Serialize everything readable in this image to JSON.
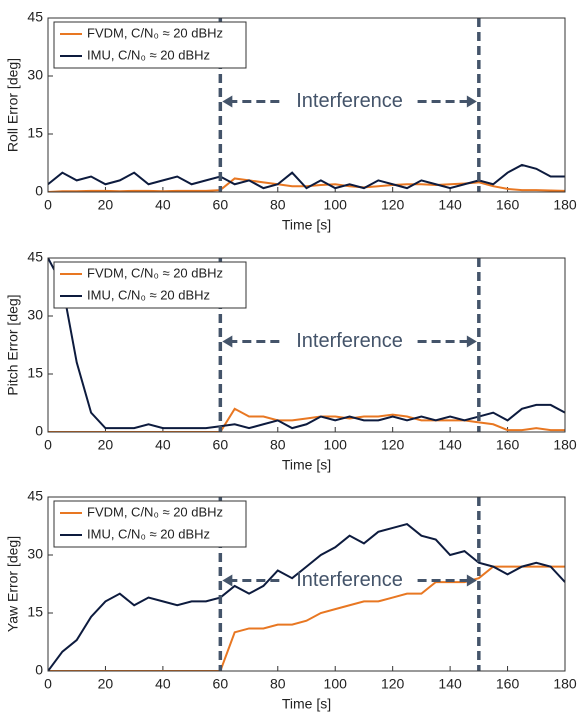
{
  "chart_data": [
    {
      "type": "line",
      "ylabel": "Roll Error [deg]",
      "xlabel": "Time [s]",
      "x": [
        0,
        5,
        10,
        15,
        20,
        25,
        30,
        35,
        40,
        45,
        50,
        55,
        60,
        65,
        70,
        75,
        80,
        85,
        90,
        95,
        100,
        105,
        110,
        115,
        120,
        125,
        130,
        135,
        140,
        145,
        150,
        155,
        160,
        165,
        170,
        175,
        180
      ],
      "series": [
        {
          "name": "FVDM, C/N₀ ≈ 20 dBHz",
          "color": "#e87722",
          "values": [
            0,
            0.2,
            0.2,
            0.3,
            0.3,
            0.2,
            0.3,
            0.3,
            0.2,
            0.3,
            0.3,
            0.3,
            0.5,
            3.5,
            3,
            2.5,
            2,
            1.5,
            1.5,
            1.8,
            2,
            1.5,
            1.2,
            1.5,
            1.8,
            2,
            2,
            1.8,
            2,
            2.2,
            2.5,
            1.5,
            0.8,
            0.5,
            0.5,
            0.4,
            0.3
          ]
        },
        {
          "name": "IMU, C/N₀ ≈ 20 dBHz",
          "color": "#0d1b3e",
          "values": [
            2,
            5,
            3,
            4,
            2,
            3,
            5,
            2,
            3,
            4,
            2,
            3,
            4,
            2,
            3,
            1,
            2,
            5,
            1,
            3,
            1,
            2,
            1,
            3,
            2,
            1,
            3,
            2,
            1,
            2,
            3,
            2,
            5,
            7,
            6,
            4,
            4
          ]
        }
      ],
      "xlim": [
        0,
        180
      ],
      "xticks": [
        0,
        20,
        40,
        60,
        80,
        100,
        120,
        140,
        160,
        180
      ],
      "ylim": [
        0,
        45
      ],
      "yticks": [
        0,
        15,
        30,
        45
      ],
      "legend": "upper left",
      "vlines": [
        60,
        150
      ],
      "annotation": "Interference"
    },
    {
      "type": "line",
      "ylabel": "Pitch Error [deg]",
      "xlabel": "Time [s]",
      "x": [
        0,
        5,
        10,
        15,
        20,
        25,
        30,
        35,
        40,
        45,
        50,
        55,
        60,
        65,
        70,
        75,
        80,
        85,
        90,
        95,
        100,
        105,
        110,
        115,
        120,
        125,
        130,
        135,
        140,
        145,
        150,
        155,
        160,
        165,
        170,
        175,
        180
      ],
      "series": [
        {
          "name": "FVDM, C/N₀ ≈ 20 dBHz",
          "color": "#e87722",
          "values": [
            0,
            0,
            0,
            0,
            0,
            0,
            0,
            0,
            0,
            0,
            0,
            0,
            0,
            6,
            4,
            4,
            3,
            3,
            3.5,
            4,
            4,
            3.5,
            4,
            4,
            4.5,
            4,
            3,
            3,
            3,
            3,
            2.5,
            2,
            0.5,
            0.5,
            1,
            0.5,
            0.5
          ]
        },
        {
          "name": "IMU, C/N₀ ≈ 20 dBHz",
          "color": "#0d1b3e",
          "values": [
            45,
            38,
            18,
            5,
            1,
            1,
            1,
            2,
            1,
            1,
            1,
            1,
            1.5,
            2,
            1,
            2,
            3,
            1,
            2,
            4,
            3,
            4,
            3,
            3,
            4,
            3,
            4,
            3,
            4,
            3,
            4,
            5,
            3,
            6,
            7,
            7,
            5
          ]
        }
      ],
      "xlim": [
        0,
        180
      ],
      "xticks": [
        0,
        20,
        40,
        60,
        80,
        100,
        120,
        140,
        160,
        180
      ],
      "ylim": [
        0,
        45
      ],
      "yticks": [
        0,
        15,
        30,
        45
      ],
      "legend": "upper left",
      "vlines": [
        60,
        150
      ],
      "annotation": "Interference"
    },
    {
      "type": "line",
      "ylabel": "Yaw Error [deg]",
      "xlabel": "Time [s]",
      "x": [
        0,
        5,
        10,
        15,
        20,
        25,
        30,
        35,
        40,
        45,
        50,
        55,
        60,
        65,
        70,
        75,
        80,
        85,
        90,
        95,
        100,
        105,
        110,
        115,
        120,
        125,
        130,
        135,
        140,
        145,
        150,
        155,
        160,
        165,
        170,
        175,
        180
      ],
      "series": [
        {
          "name": "FVDM, C/N₀ ≈ 20 dBHz",
          "color": "#e87722",
          "values": [
            0,
            0,
            0,
            0,
            0,
            0,
            0,
            0,
            0,
            0,
            0,
            0,
            0,
            10,
            11,
            11,
            12,
            12,
            13,
            15,
            16,
            17,
            18,
            18,
            19,
            20,
            20,
            23,
            23,
            23,
            24,
            27,
            27,
            27,
            27,
            27,
            27
          ]
        },
        {
          "name": "IMU, C/N₀ ≈ 20 dBHz",
          "color": "#0d1b3e",
          "values": [
            0,
            5,
            8,
            14,
            18,
            20,
            17,
            19,
            18,
            17,
            18,
            18,
            19,
            22,
            20,
            22,
            26,
            24,
            27,
            30,
            32,
            35,
            33,
            36,
            37,
            38,
            35,
            34,
            30,
            31,
            28,
            27,
            25,
            27,
            28,
            27,
            23
          ]
        }
      ],
      "xlim": [
        0,
        180
      ],
      "xticks": [
        0,
        20,
        40,
        60,
        80,
        100,
        120,
        140,
        160,
        180
      ],
      "ylim": [
        0,
        45
      ],
      "yticks": [
        0,
        15,
        30,
        45
      ],
      "legend": "upper left",
      "vlines": [
        60,
        150
      ],
      "annotation": "Interference"
    }
  ]
}
